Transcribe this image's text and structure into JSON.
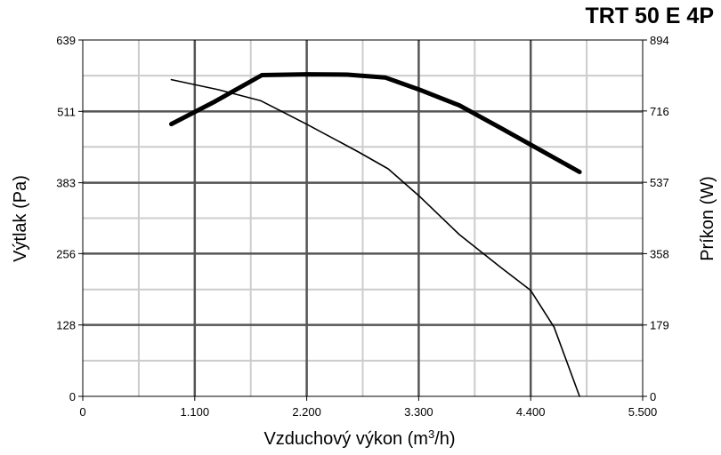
{
  "chart_data": {
    "type": "line",
    "title": "TRT 50 E 4P",
    "xlabel": "Vzduchový výkon (m",
    "xlabel_sup": "3",
    "xlabel_end": "/h)",
    "ylabel_left": "Výtlak (Pa)",
    "ylabel_right": "Príkon (W)",
    "xlim": [
      0,
      5500
    ],
    "ylim_left": [
      0,
      639
    ],
    "ylim_right": [
      0,
      894
    ],
    "x_ticks": [
      0,
      1100,
      2200,
      3300,
      4400,
      5500
    ],
    "x_tick_labels": [
      "0",
      "1.100",
      "2.200",
      "3.300",
      "4.400",
      "5.500"
    ],
    "y_left_ticks": [
      0,
      128,
      256,
      383,
      511,
      639
    ],
    "y_left_tick_labels": [
      "0",
      "128",
      "256",
      "383",
      "511",
      "639"
    ],
    "y_right_ticks": [
      0,
      179,
      358,
      537,
      716,
      894
    ],
    "y_right_tick_labels": [
      "0",
      "179",
      "358",
      "537",
      "716",
      "894"
    ],
    "grid": true,
    "series": [
      {
        "axis": "left",
        "style": "thin",
        "points": [
          [
            870,
            568
          ],
          [
            1330,
            550
          ],
          [
            1750,
            530
          ],
          [
            2200,
            488
          ],
          [
            2700,
            439
          ],
          [
            3000,
            408
          ],
          [
            3300,
            360
          ],
          [
            3700,
            290
          ],
          [
            4100,
            232
          ],
          [
            4400,
            190
          ],
          [
            4630,
            124
          ],
          [
            4880,
            0
          ]
        ]
      },
      {
        "axis": "right",
        "style": "thick",
        "points": [
          [
            870,
            683
          ],
          [
            1300,
            740
          ],
          [
            1760,
            806
          ],
          [
            2200,
            808
          ],
          [
            2600,
            807
          ],
          [
            2970,
            800
          ],
          [
            3300,
            770
          ],
          [
            3700,
            730
          ],
          [
            4100,
            674
          ],
          [
            4500,
            617
          ],
          [
            4880,
            563
          ]
        ]
      }
    ]
  }
}
